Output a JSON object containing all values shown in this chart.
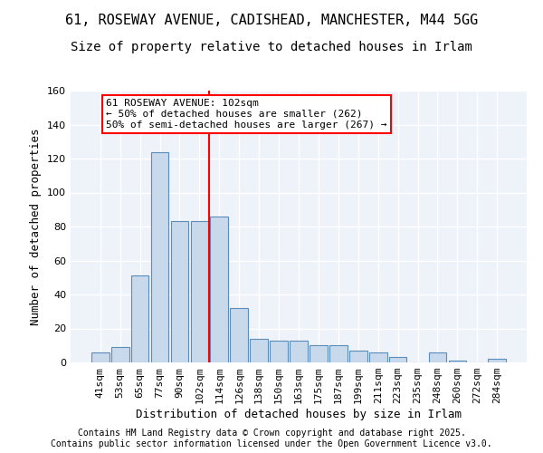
{
  "title1": "61, ROSEWAY AVENUE, CADISHEAD, MANCHESTER, M44 5GG",
  "title2": "Size of property relative to detached houses in Irlam",
  "xlabel": "Distribution of detached houses by size in Irlam",
  "ylabel": "Number of detached properties",
  "categories": [
    "41sqm",
    "53sqm",
    "65sqm",
    "77sqm",
    "90sqm",
    "102sqm",
    "114sqm",
    "126sqm",
    "138sqm",
    "150sqm",
    "163sqm",
    "175sqm",
    "187sqm",
    "199sqm",
    "211sqm",
    "223sqm",
    "235sqm",
    "248sqm",
    "260sqm",
    "272sqm",
    "284sqm"
  ],
  "values": [
    6,
    9,
    51,
    124,
    83,
    83,
    86,
    32,
    14,
    13,
    13,
    10,
    10,
    7,
    6,
    3,
    0,
    6,
    1,
    0,
    2
  ],
  "bar_color": "#c9d9ec",
  "bar_edge_color": "#5b8db8",
  "vline_index": 5,
  "vline_color": "red",
  "annotation_text": "61 ROSEWAY AVENUE: 102sqm\n← 50% of detached houses are smaller (262)\n50% of semi-detached houses are larger (267) →",
  "annotation_box_color": "white",
  "annotation_box_edge": "red",
  "ylim": [
    0,
    160
  ],
  "yticks": [
    0,
    20,
    40,
    60,
    80,
    100,
    120,
    140,
    160
  ],
  "footer": "Contains HM Land Registry data © Crown copyright and database right 2025.\nContains public sector information licensed under the Open Government Licence v3.0.",
  "background_color": "#eef2f9",
  "grid_color": "white",
  "title_fontsize": 11,
  "subtitle_fontsize": 10,
  "axis_label_fontsize": 9,
  "tick_fontsize": 8,
  "annotation_fontsize": 8,
  "footer_fontsize": 7
}
